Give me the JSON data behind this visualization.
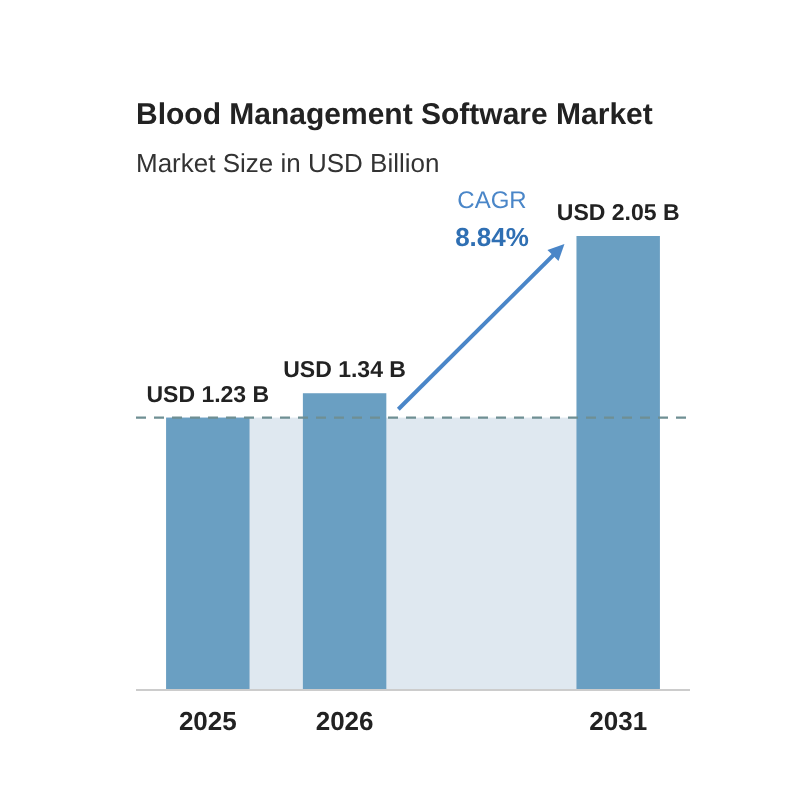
{
  "chart_data": {
    "type": "bar",
    "title": "Blood Management Software Market",
    "subtitle": "Market Size in USD Billion",
    "categories": [
      "2025",
      "2026",
      null,
      "2031"
    ],
    "values": [
      1.23,
      1.34,
      null,
      2.05
    ],
    "value_labels": [
      "USD 1.23 B",
      "USD 1.34 B",
      null,
      "USD 2.05 B"
    ],
    "color": "#6a9fc2",
    "ref_lines": [
      {
        "axis": "y",
        "value": 1.23,
        "color": "#6f8f93",
        "line_style": "dashed"
      }
    ],
    "bands": [
      {
        "axis": "y",
        "from": 0,
        "to": 1.23,
        "color": "#dfe8f0"
      }
    ],
    "annotations": [
      "CAGR",
      "8.84%"
    ]
  }
}
